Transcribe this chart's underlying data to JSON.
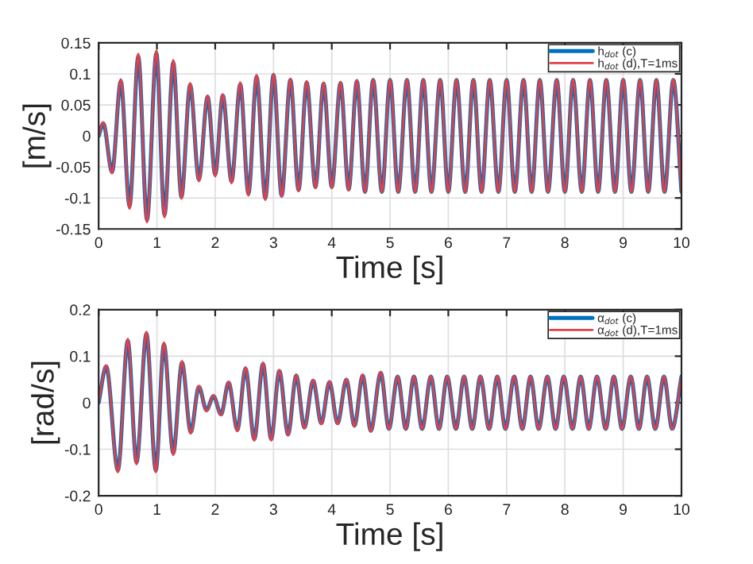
{
  "chart_data": [
    {
      "type": "line",
      "xlabel": "Time [s]",
      "ylabel": "[m/s]",
      "xlim": [
        0,
        10
      ],
      "ylim": [
        -0.15,
        0.15
      ],
      "xticks": [
        0,
        1,
        2,
        3,
        4,
        5,
        6,
        7,
        8,
        9,
        10
      ],
      "yticks": [
        -0.15,
        -0.1,
        -0.05,
        0,
        0.05,
        0.1,
        0.15
      ],
      "grid": true,
      "legend": "top right",
      "x": [
        0,
        0.08,
        0.23,
        0.38,
        0.53,
        0.68,
        0.83,
        0.99,
        1.13,
        1.28,
        1.42,
        1.57,
        1.72,
        1.87,
        2.0,
        2.13,
        2.28,
        2.43,
        2.57,
        2.71,
        2.86,
        3.0,
        3.14,
        3.29,
        3.43,
        3.57,
        3.72,
        3.86,
        4.0,
        4.15,
        4.29,
        4.43,
        4.57,
        4.71,
        4.86,
        5.0,
        5.14,
        5.29,
        5.43,
        5.57,
        5.71,
        5.86,
        6.0,
        6.14,
        6.29,
        6.43,
        6.57,
        6.71,
        6.86,
        7.0,
        7.14,
        7.29,
        7.43,
        7.57,
        7.71,
        7.86,
        8.0,
        8.14,
        8.29,
        8.43,
        8.57,
        8.71,
        8.86,
        9.0,
        9.14,
        9.29,
        9.43,
        9.57,
        9.71,
        9.86,
        10.0
      ],
      "series": [
        {
          "name": "h$_{dot}$ (c)",
          "color": "#0072bd",
          "values": [
            0,
            0.02,
            -0.058,
            0.088,
            -0.113,
            0.128,
            -0.135,
            0.133,
            -0.127,
            0.118,
            -0.098,
            0.082,
            -0.07,
            0.063,
            -0.062,
            0.065,
            -0.073,
            0.083,
            -0.093,
            0.095,
            -0.1,
            0.098,
            -0.096,
            0.09,
            -0.087,
            0.086,
            -0.082,
            0.084,
            -0.082,
            0.085,
            -0.086,
            0.088,
            -0.09,
            0.09,
            -0.09,
            0.09,
            -0.09,
            0.09,
            -0.09,
            0.09,
            -0.09,
            0.09,
            -0.09,
            0.09,
            -0.09,
            0.09,
            -0.09,
            0.09,
            -0.09,
            0.09,
            -0.09,
            0.09,
            -0.09,
            0.09,
            -0.09,
            0.09,
            -0.09,
            0.09,
            -0.09,
            0.09,
            -0.09,
            0.09,
            -0.09,
            0.09,
            -0.09,
            0.09,
            -0.09,
            0.09,
            -0.09,
            0.09,
            -0.09
          ]
        },
        {
          "name": "h$_{dot}$ (d),T=1ms",
          "color": "#e0404a",
          "values": [
            0,
            0.022,
            -0.06,
            0.091,
            -0.117,
            0.132,
            -0.139,
            0.137,
            -0.131,
            0.122,
            -0.101,
            0.085,
            -0.073,
            0.065,
            -0.065,
            0.067,
            -0.076,
            0.086,
            -0.096,
            0.098,
            -0.103,
            0.1,
            -0.098,
            0.092,
            -0.089,
            0.088,
            -0.084,
            0.086,
            -0.084,
            0.087,
            -0.088,
            0.09,
            -0.091,
            0.091,
            -0.091,
            0.091,
            -0.091,
            0.091,
            -0.091,
            0.091,
            -0.091,
            0.091,
            -0.091,
            0.091,
            -0.091,
            0.091,
            -0.091,
            0.091,
            -0.091,
            0.091,
            -0.091,
            0.091,
            -0.091,
            0.091,
            -0.091,
            0.091,
            -0.091,
            0.091,
            -0.091,
            0.091,
            -0.091,
            0.091,
            -0.091,
            0.091,
            -0.091,
            0.091,
            -0.091,
            0.091,
            -0.091,
            0.091,
            -0.091
          ]
        }
      ]
    },
    {
      "type": "line",
      "xlabel": "Time [s]",
      "ylabel": "[rad/s]",
      "xlim": [
        0,
        10
      ],
      "ylim": [
        -0.2,
        0.2
      ],
      "xticks": [
        0,
        1,
        2,
        3,
        4,
        5,
        6,
        7,
        8,
        9,
        10
      ],
      "yticks": [
        -0.2,
        -0.1,
        0,
        0.1,
        0.2
      ],
      "grid": true,
      "legend": "top right",
      "x": [
        0,
        0.13,
        0.33,
        0.5,
        0.65,
        0.82,
        0.98,
        1.12,
        1.28,
        1.43,
        1.58,
        1.72,
        1.85,
        1.97,
        2.1,
        2.23,
        2.38,
        2.52,
        2.67,
        2.82,
        2.96,
        3.1,
        3.25,
        3.39,
        3.53,
        3.68,
        3.82,
        3.96,
        4.1,
        4.25,
        4.39,
        4.53,
        4.67,
        4.84,
        4.98,
        5.13,
        5.27,
        5.41,
        5.55,
        5.7,
        5.84,
        5.98,
        6.13,
        6.27,
        6.41,
        6.55,
        6.7,
        6.84,
        6.98,
        7.13,
        7.27,
        7.41,
        7.55,
        7.7,
        7.84,
        7.98,
        8.13,
        8.27,
        8.41,
        8.55,
        8.7,
        8.84,
        8.98,
        9.13,
        9.27,
        9.41,
        9.55,
        9.7,
        9.84,
        10.0
      ],
      "series": [
        {
          "name": "α$_{dot}$ (c)",
          "color": "#0072bd",
          "values": [
            0,
            0.078,
            -0.145,
            0.133,
            -0.128,
            0.148,
            -0.145,
            0.125,
            -0.108,
            0.086,
            -0.063,
            0.034,
            -0.016,
            0.014,
            -0.025,
            0.043,
            -0.058,
            0.073,
            -0.078,
            0.083,
            -0.078,
            0.068,
            -0.068,
            0.058,
            -0.053,
            0.047,
            -0.044,
            0.044,
            -0.044,
            0.049,
            -0.049,
            0.058,
            -0.06,
            0.064,
            -0.056,
            0.056,
            -0.056,
            0.056,
            -0.056,
            0.056,
            -0.056,
            0.056,
            -0.056,
            0.056,
            -0.056,
            0.056,
            -0.056,
            0.056,
            -0.056,
            0.056,
            -0.056,
            0.056,
            -0.056,
            0.056,
            -0.056,
            0.056,
            -0.056,
            0.056,
            -0.056,
            0.056,
            -0.056,
            0.056,
            -0.056,
            0.056,
            -0.056,
            0.056,
            -0.056,
            0.056,
            -0.056,
            0.056
          ]
        },
        {
          "name": "α$_{dot}$ (d),T=1ms",
          "color": "#e0404a",
          "values": [
            0,
            0.08,
            -0.149,
            0.137,
            -0.132,
            0.152,
            -0.149,
            0.129,
            -0.112,
            0.089,
            -0.066,
            0.036,
            -0.018,
            0.016,
            -0.027,
            0.045,
            -0.061,
            0.076,
            -0.081,
            0.086,
            -0.081,
            0.07,
            -0.07,
            0.06,
            -0.055,
            0.049,
            -0.046,
            0.046,
            -0.046,
            0.051,
            -0.051,
            0.06,
            -0.062,
            0.066,
            -0.057,
            0.057,
            -0.057,
            0.057,
            -0.057,
            0.057,
            -0.057,
            0.057,
            -0.057,
            0.057,
            -0.057,
            0.057,
            -0.057,
            0.057,
            -0.057,
            0.057,
            -0.057,
            0.057,
            -0.057,
            0.057,
            -0.057,
            0.057,
            -0.057,
            0.057,
            -0.057,
            0.057,
            -0.057,
            0.057,
            -0.057,
            0.057,
            -0.057,
            0.057,
            -0.057,
            0.057,
            -0.057,
            0.057
          ]
        }
      ]
    }
  ]
}
